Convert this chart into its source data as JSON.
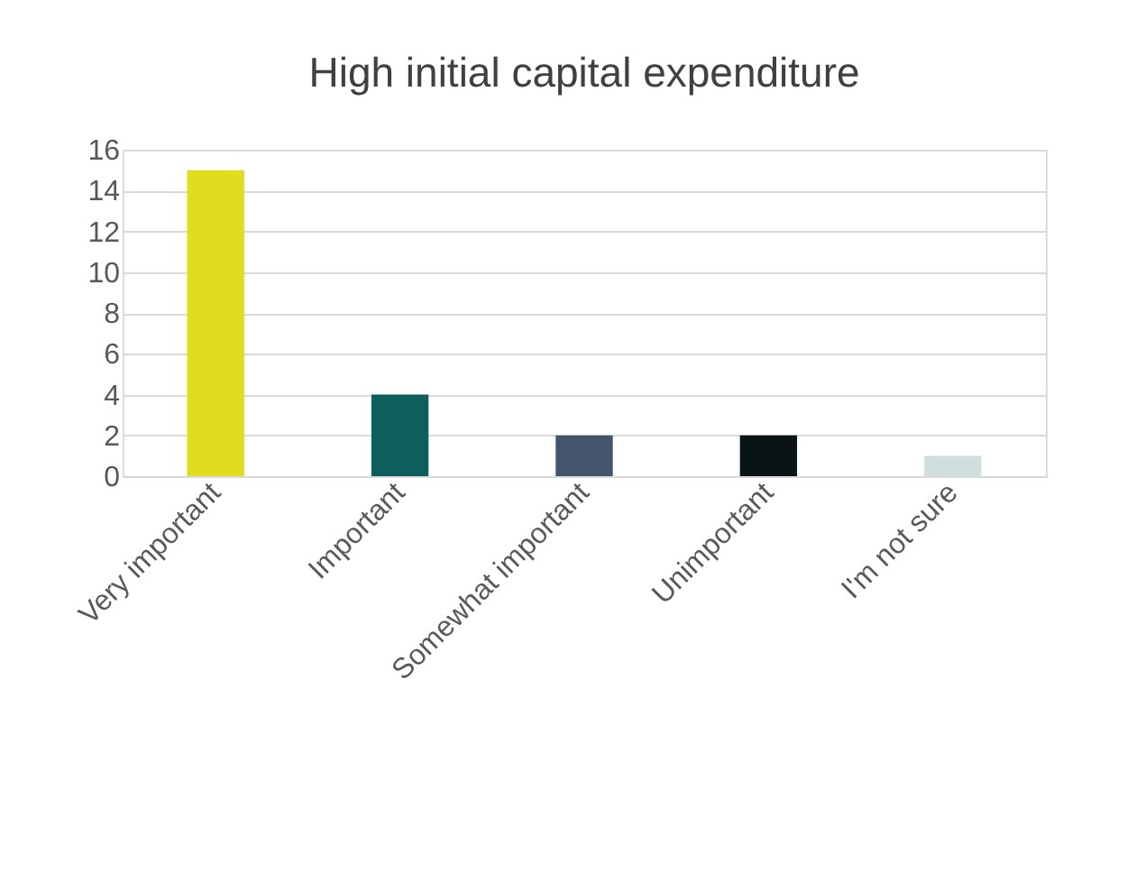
{
  "chart_data": {
    "type": "bar",
    "title": "High initial capital expenditure",
    "categories": [
      "Very important",
      "Important",
      "Somewhat important",
      "Unimportant",
      "I'm not sure"
    ],
    "values": [
      15,
      4,
      2,
      2,
      1
    ],
    "colors": [
      "#e0dc1e",
      "#0f5e5e",
      "#44546a",
      "#0a1414",
      "#d0dede"
    ],
    "ylim": [
      0,
      16
    ],
    "yticks": [
      0,
      2,
      4,
      6,
      8,
      10,
      12,
      14,
      16
    ],
    "grid": "y"
  }
}
